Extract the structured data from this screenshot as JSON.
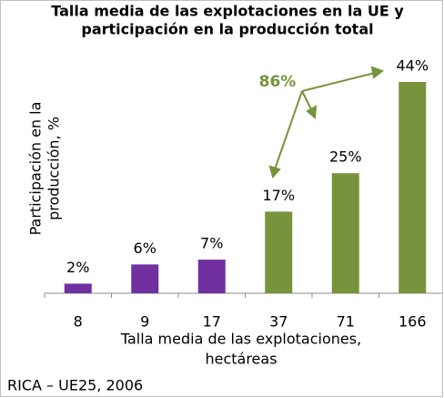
{
  "chart_data": {
    "type": "bar",
    "title": [
      "Talla media de las explotaciones en la UE y",
      "participación en la producción total"
    ],
    "y_label": [
      "Participación en la",
      "producción, %"
    ],
    "x_label": [
      "Talla media de las explotaciones,",
      "hectáreas"
    ],
    "categories": [
      "8",
      "9",
      "17",
      "37",
      "71",
      "166"
    ],
    "values": [
      2,
      6,
      7,
      17,
      25,
      44
    ],
    "value_labels": [
      "2%",
      "6%",
      "7%",
      "17%",
      "25%",
      "44%"
    ],
    "colors": [
      "#7030a0",
      "#7030a0",
      "#7030a0",
      "#77933c",
      "#77933c",
      "#77933c"
    ],
    "ylim": [
      0,
      44
    ],
    "annotation": "86%",
    "source": "RICA – UE25, 2006"
  }
}
